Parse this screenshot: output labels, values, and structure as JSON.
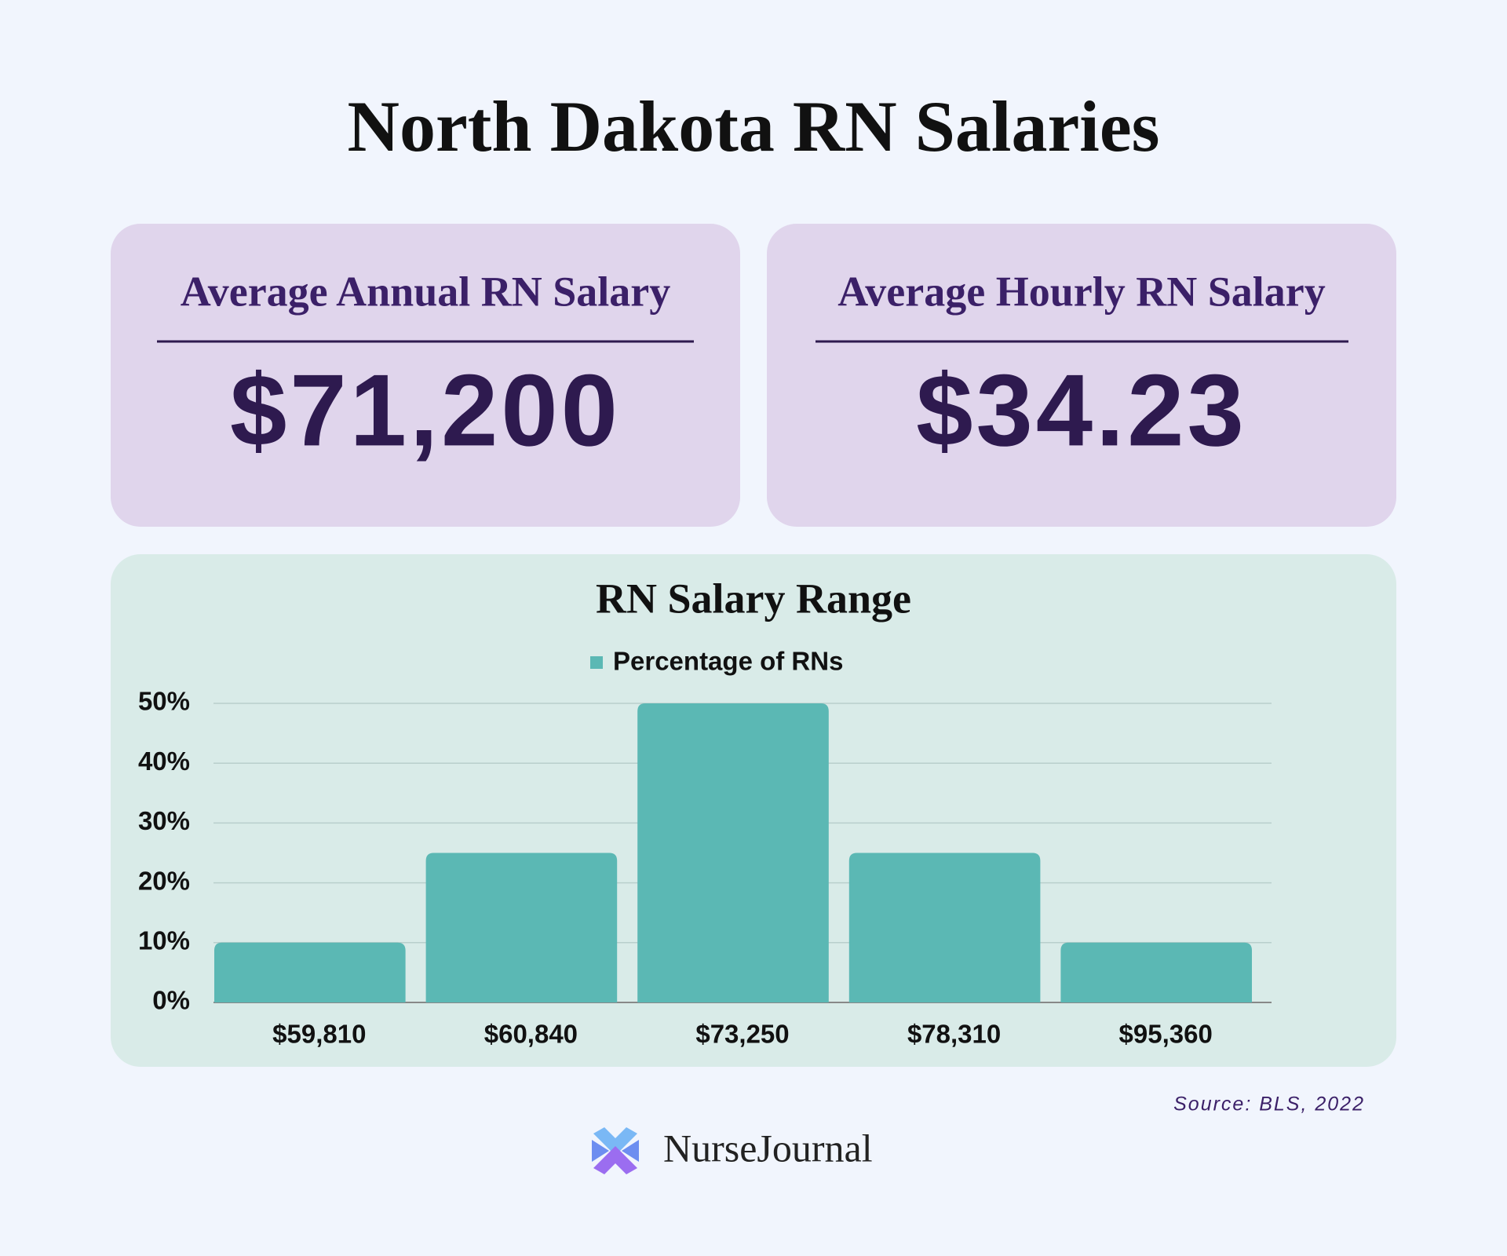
{
  "title": "North Dakota RN Salaries",
  "cards": [
    {
      "label": "Average Annual RN Salary",
      "value": "$71,200"
    },
    {
      "label": "Average Hourly RN Salary",
      "value": "$34.23"
    }
  ],
  "chart_data": {
    "type": "bar",
    "title": "RN Salary Range",
    "categories": [
      "$59,810",
      "$60,840",
      "$73,250",
      "$78,310",
      "$95,360"
    ],
    "series": [
      {
        "name": "Percentage of RNs",
        "color": "#5bb8b4",
        "values": [
          10,
          25,
          50,
          25,
          10
        ]
      }
    ],
    "ylim": [
      0,
      50
    ],
    "yticks": [
      {
        "value": 0,
        "label": "0%"
      },
      {
        "value": 10,
        "label": "10%"
      },
      {
        "value": 20,
        "label": "20%"
      },
      {
        "value": 30,
        "label": "30%"
      },
      {
        "value": 40,
        "label": "40%"
      },
      {
        "value": 50,
        "label": "50%"
      }
    ],
    "grid": true,
    "legend": "top"
  },
  "source": "Source: BLS, 2022",
  "brand": "NurseJournal"
}
